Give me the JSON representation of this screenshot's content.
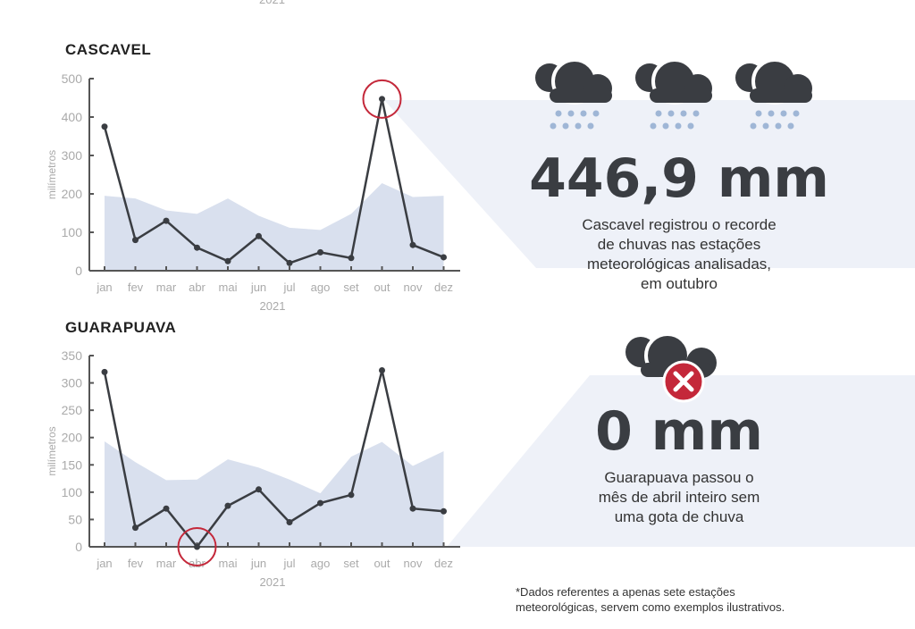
{
  "top_cut_label": "2021",
  "chart_data": [
    {
      "type": "line",
      "title": "CASCAVEL",
      "xlabel": "2021",
      "ylabel": "milímetros",
      "ylim": [
        0,
        500
      ],
      "yticks": [
        0,
        100,
        200,
        300,
        400,
        500
      ],
      "categories": [
        "jan",
        "fev",
        "mar",
        "abr",
        "mai",
        "jun",
        "jul",
        "ago",
        "set",
        "out",
        "nov",
        "dez"
      ],
      "series": [
        {
          "type": "area",
          "values": [
            195,
            188,
            157,
            148,
            188,
            143,
            112,
            106,
            148,
            228,
            192,
            195
          ]
        },
        {
          "type": "line",
          "values": [
            375,
            80,
            130,
            60,
            25,
            90,
            20,
            48,
            33,
            446.9,
            67,
            35
          ]
        }
      ],
      "highlight_index": 9,
      "grid": false
    },
    {
      "type": "line",
      "title": "GUARAPUAVA",
      "xlabel": "2021",
      "ylabel": "milímetros",
      "ylim": [
        0,
        350
      ],
      "yticks": [
        0,
        50,
        100,
        150,
        200,
        250,
        300,
        350
      ],
      "categories": [
        "jan",
        "fev",
        "mar",
        "abr",
        "mai",
        "jun",
        "jul",
        "ago",
        "set",
        "out",
        "nov",
        "dez"
      ],
      "series": [
        {
          "type": "area",
          "values": [
            193,
            155,
            122,
            123,
            160,
            145,
            123,
            98,
            165,
            192,
            148,
            175
          ]
        },
        {
          "type": "line",
          "values": [
            320,
            35,
            70,
            0,
            75,
            105,
            45,
            80,
            95,
            323,
            70,
            65
          ]
        }
      ],
      "highlight_index": 3,
      "grid": false
    }
  ],
  "colors": {
    "line": "#3a3d42",
    "area": "#d9e0ee",
    "highlight": "#c4283a",
    "cloud": "#3a3d42",
    "drop": "#9fb6d6"
  },
  "cascavel": {
    "value": "446,9 mm",
    "text": [
      "Cascavel registrou o recorde",
      "de chuvas nas estações",
      "meteorológicas analisadas,",
      "em outubro"
    ]
  },
  "guarapuava": {
    "value": "0 mm",
    "text": [
      "Guarapuava passou o",
      "mês de abril inteiro sem",
      "uma gota de chuva"
    ]
  },
  "footnote": [
    "*Dados referentes a apenas sete estações",
    "meteorológicas, servem como exemplos ilustrativos."
  ]
}
